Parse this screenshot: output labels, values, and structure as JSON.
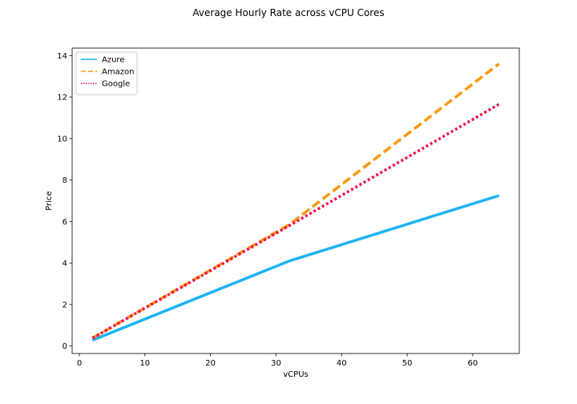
{
  "chart_data": {
    "type": "line",
    "title": "Average Hourly Rate across vCPU Cores",
    "xlabel": "vCPUs",
    "ylabel": "Price",
    "xlim": [
      -1.1,
      67.1
    ],
    "ylim": [
      -0.36,
      14.36
    ],
    "xticks": [
      0,
      10,
      20,
      30,
      40,
      50,
      60
    ],
    "yticks": [
      0,
      2,
      4,
      6,
      8,
      10,
      12,
      14
    ],
    "grid": false,
    "legend_position": "top-left",
    "series": [
      {
        "name": "Azure",
        "color": "#1bb3f5",
        "style": "solid",
        "x": [
          2,
          32,
          64
        ],
        "y": [
          0.28,
          4.1,
          7.25
        ]
      },
      {
        "name": "Amazon",
        "color": "#f9990f",
        "style": "dashed",
        "x": [
          2,
          32,
          64
        ],
        "y": [
          0.38,
          5.85,
          13.6
        ]
      },
      {
        "name": "Google",
        "color": "#f2124c",
        "style": "dotted",
        "x": [
          2,
          32,
          64
        ],
        "y": [
          0.38,
          5.8,
          11.65
        ]
      }
    ]
  }
}
